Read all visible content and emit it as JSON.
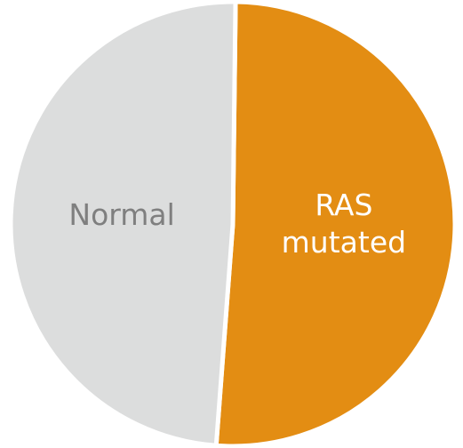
{
  "chart_data": {
    "type": "pie",
    "categories": [
      "RAS mutated",
      "Normal"
    ],
    "values": [
      51,
      49
    ],
    "colors": [
      "#e38d13",
      "#dcdddd"
    ]
  }
}
